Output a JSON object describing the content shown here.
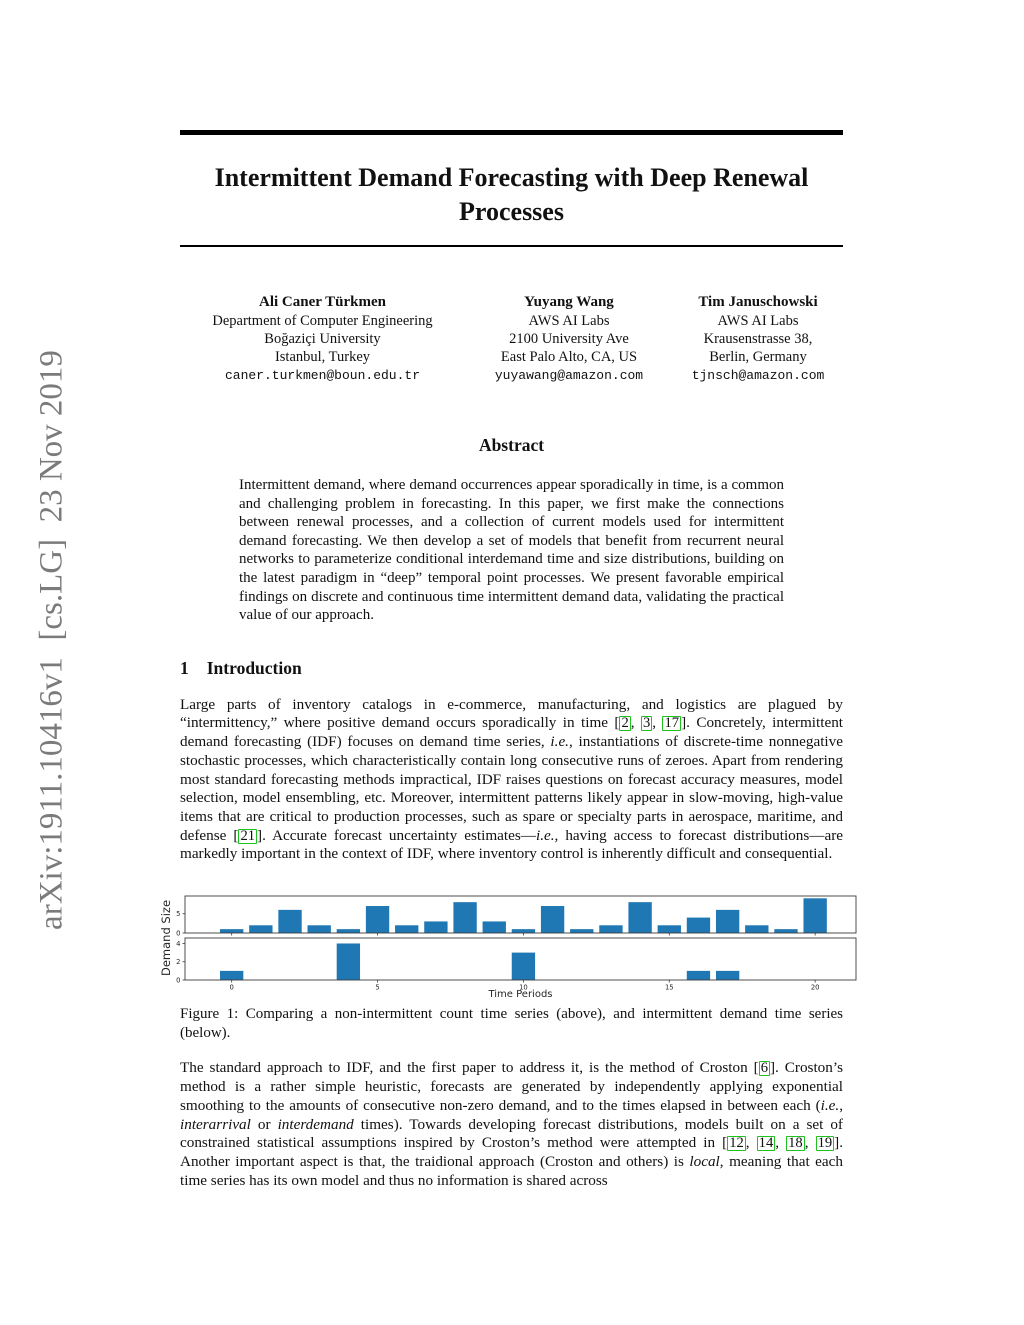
{
  "arxiv_banner": "arXiv:1911.10416v1  [cs.LG]  23 Nov 2019",
  "title": "Intermittent Demand Forecasting with Deep Renewal Processes",
  "authors": [
    {
      "name": "Ali Caner Türkmen",
      "lines": [
        "Department of Computer Engineering",
        "Boğaziçi University",
        "Istanbul, Turkey"
      ],
      "email": "caner.turkmen@boun.edu.tr"
    },
    {
      "name": "Yuyang Wang",
      "lines": [
        "AWS AI Labs",
        "2100 University Ave",
        "East Palo Alto, CA, US"
      ],
      "email": "yuyawang@amazon.com"
    },
    {
      "name": "Tim Januschowski",
      "lines": [
        "AWS AI Labs",
        "Krausenstrasse 38,",
        "Berlin, Germany"
      ],
      "email": "tjnsch@amazon.com"
    }
  ],
  "abstract": {
    "heading": "Abstract",
    "text": "Intermittent demand, where demand occurrences appear sporadically in time, is a common and challenging problem in forecasting. In this paper, we first make the connections between renewal processes, and a collection of current models used for intermittent demand forecasting. We then develop a set of models that benefit from recurrent neural networks to parameterize conditional interdemand time and size distributions, building on the latest paradigm in “deep” temporal point processes. We present favorable empirical findings on discrete and continuous time intermittent demand data, validating the practical value of our approach."
  },
  "section1": {
    "number": "1",
    "title": "Introduction"
  },
  "para1": [
    {
      "t": "Large parts of inventory catalogs in e-commerce, manufacturing, and logistics are plagued by “intermittency,” where positive demand occurs sporadically in time ["
    },
    {
      "c": "2"
    },
    {
      "t": ", "
    },
    {
      "c": "3"
    },
    {
      "t": ", "
    },
    {
      "c": "17"
    },
    {
      "t": "]. Concretely, intermittent demand forecasting (IDF) focuses on demand time series, "
    },
    {
      "i": "i.e."
    },
    {
      "t": ", instantiations of discrete-time nonnegative stochastic processes, which characteristically contain long consecutive runs of zeroes. Apart from rendering most standard forecasting methods impractical, IDF raises questions on forecast accuracy measures, model selection, model ensembling, etc. Moreover, intermittent patterns likely appear in slow-moving, high-value items that are critical to production processes, such as spare or specialty parts in aerospace, maritime, and defense ["
    },
    {
      "c": "21"
    },
    {
      "t": "]. Accurate forecast uncertainty estimates—"
    },
    {
      "i": "i.e."
    },
    {
      "t": ", having access to forecast distributions—are markedly important in the context of IDF, where inventory control is inherently difficult and consequential."
    }
  ],
  "figure1": {
    "caption": "Figure 1: Comparing a non-intermittent count time series (above), and intermittent demand time series (below)."
  },
  "chart_data": [
    {
      "type": "bar",
      "x": [
        0,
        1,
        2,
        3,
        4,
        5,
        6,
        7,
        8,
        9,
        10,
        11,
        12,
        13,
        14,
        15,
        16,
        17,
        18,
        19,
        20
      ],
      "values": [
        1,
        2,
        6,
        2,
        1,
        7,
        2,
        3,
        8,
        3,
        1,
        7,
        1,
        2,
        8,
        2,
        4,
        6,
        2,
        1,
        9
      ],
      "title": "Non-intermittent count time series (above panel)",
      "ylabel": "Demand Size",
      "xlabel": "",
      "yticks": [
        0,
        5
      ],
      "ylim": [
        0,
        9.6
      ],
      "xlim": [
        -1.6,
        21.4
      ],
      "bar_color": "#1f77b4",
      "grid": false
    },
    {
      "type": "bar",
      "x": [
        0,
        1,
        2,
        3,
        4,
        5,
        6,
        7,
        8,
        9,
        10,
        11,
        12,
        13,
        14,
        15,
        16,
        17,
        18,
        19,
        20
      ],
      "values": [
        1,
        0,
        0,
        0,
        4,
        0,
        0,
        0,
        0,
        0,
        3,
        0,
        0,
        0,
        0,
        0,
        1,
        1,
        0,
        0,
        0
      ],
      "title": "Intermittent demand time series (below panel)",
      "ylabel": "Demand Size",
      "xlabel": "Time Periods",
      "yticks": [
        0,
        2,
        4
      ],
      "xticks": [
        0,
        5,
        10,
        15,
        20
      ],
      "ylim": [
        0,
        4.6
      ],
      "xlim": [
        -1.6,
        21.4
      ],
      "bar_color": "#1f77b4",
      "grid": false
    }
  ],
  "para2": [
    {
      "t": "The standard approach to IDF, and the first paper to address it, is the method of Croston ["
    },
    {
      "c": "6"
    },
    {
      "t": "]. Croston’s method is a rather simple heuristic, forecasts are generated by independently applying exponential smoothing to the amounts of consecutive non-zero demand, and to the times elapsed in between each ("
    },
    {
      "i": "i.e."
    },
    {
      "t": ", "
    },
    {
      "i": "interarrival"
    },
    {
      "t": " or "
    },
    {
      "i": "interdemand"
    },
    {
      "t": " times). Towards developing forecast distributions, models built on a set of constrained statistical assumptions inspired by Croston’s method were attempted in ["
    },
    {
      "c": "12"
    },
    {
      "t": ", "
    },
    {
      "c": "14"
    },
    {
      "t": ", "
    },
    {
      "c": "18"
    },
    {
      "t": ", "
    },
    {
      "c": "19"
    },
    {
      "t": "]. Another important aspect is that, the traidional approach (Croston and others) is "
    },
    {
      "i": "local"
    },
    {
      "t": ", meaning that each time series has its own model and thus no information is shared across"
    }
  ]
}
